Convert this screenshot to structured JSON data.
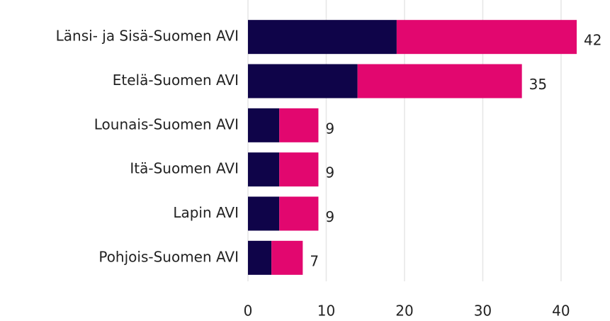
{
  "chart_data": {
    "type": "stacked-barh",
    "categories": [
      "Länsi- ja Sisä-Suomen AVI",
      "Etelä-Suomen AVI",
      "Lounais-Suomen AVI",
      "Itä-Suomen AVI",
      "Lapin AVI",
      "Pohjois-Suomen AVI"
    ],
    "series": [
      {
        "color": "#0f0449",
        "values": [
          19,
          14,
          4,
          4,
          4,
          3
        ]
      },
      {
        "color": "#e2076f",
        "values": [
          23,
          21,
          5,
          5,
          5,
          4
        ]
      }
    ],
    "totals": [
      42,
      35,
      9,
      9,
      9,
      7
    ],
    "xlim": [
      0,
      42
    ],
    "xticks": [
      0,
      10,
      20,
      30,
      40
    ],
    "grid": true
  }
}
